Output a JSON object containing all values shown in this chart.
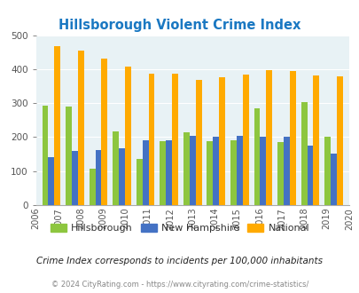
{
  "title": "Hillsborough Violent Crime Index",
  "years": [
    2007,
    2008,
    2009,
    2010,
    2011,
    2012,
    2013,
    2014,
    2015,
    2016,
    2017,
    2018,
    2019
  ],
  "hillsborough": [
    292,
    290,
    108,
    218,
    135,
    187,
    215,
    187,
    190,
    285,
    185,
    303,
    201
  ],
  "new_hampshire": [
    140,
    160,
    163,
    168,
    190,
    190,
    203,
    200,
    203,
    200,
    202,
    175,
    152
  ],
  "national": [
    467,
    454,
    432,
    407,
    387,
    387,
    368,
    376,
    383,
    397,
    394,
    381,
    379
  ],
  "color_hillsborough": "#8dc63f",
  "color_new_hampshire": "#4472c4",
  "color_national": "#ffaa00",
  "bg_color": "#e8f2f5",
  "ylim": [
    0,
    500
  ],
  "yticks": [
    0,
    100,
    200,
    300,
    400,
    500
  ],
  "tick_color": "#555555",
  "title_color": "#1a78c2",
  "footer_color": "#888888",
  "note_color": "#222222",
  "legend_labels": [
    "Hillsborough",
    "New Hampshire",
    "National"
  ],
  "note": "Crime Index corresponds to incidents per 100,000 inhabitants",
  "footer": "© 2024 CityRating.com - https://www.cityrating.com/crime-statistics/"
}
